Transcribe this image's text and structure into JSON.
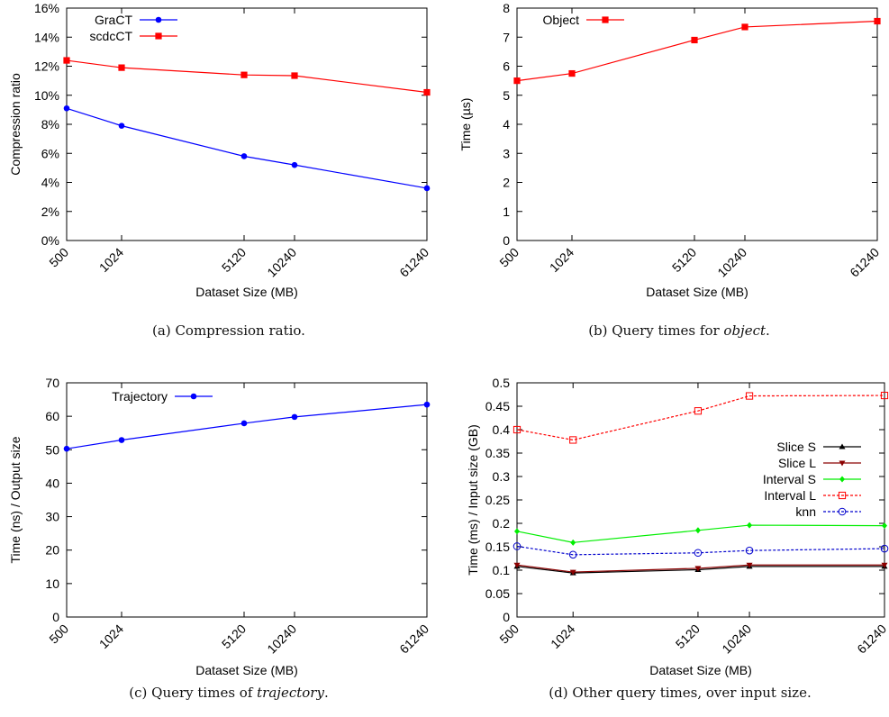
{
  "chart_data": [
    {
      "type": "line",
      "x": [
        "500",
        "1024",
        "5120",
        "10240",
        "61240"
      ],
      "xlabel": "Dataset Size (MB)",
      "ylabel": "Compression ratio",
      "ylim": [
        0,
        16
      ],
      "yticks": [
        "0%",
        "2%",
        "4%",
        "6%",
        "8%",
        "10%",
        "12%",
        "14%",
        "16%"
      ],
      "legend_position": "top-left",
      "caption": "(a) Compression ratio.",
      "series": [
        {
          "name": "GraCT",
          "color": "#0000ff",
          "marker": "circle",
          "dash": "",
          "values": [
            9.1,
            7.9,
            5.8,
            5.2,
            3.6
          ]
        },
        {
          "name": "scdcCT",
          "color": "#ff0000",
          "marker": "square",
          "dash": "",
          "values": [
            12.4,
            11.9,
            11.4,
            11.35,
            10.2
          ]
        }
      ]
    },
    {
      "type": "line",
      "x": [
        "500",
        "1024",
        "5120",
        "10240",
        "61240"
      ],
      "xlabel": "Dataset Size (MB)",
      "ylabel": "Time (µs)",
      "ylim": [
        0,
        8
      ],
      "yticks": [
        "0",
        "1",
        "2",
        "3",
        "4",
        "5",
        "6",
        "7",
        "8"
      ],
      "legend_position": "top-left",
      "caption_prefix": "(b) Query times for ",
      "caption_em": "object",
      "caption_suffix": ".",
      "series": [
        {
          "name": "Object",
          "color": "#ff0000",
          "marker": "square",
          "dash": "",
          "values": [
            5.5,
            5.75,
            6.9,
            7.35,
            7.55
          ]
        }
      ]
    },
    {
      "type": "line",
      "x": [
        "500",
        "1024",
        "5120",
        "10240",
        "61240"
      ],
      "xlabel": "Dataset Size (MB)",
      "ylabel": "Time (ns) / Output size",
      "ylim": [
        0,
        70
      ],
      "yticks": [
        "0",
        "10",
        "20",
        "30",
        "40",
        "50",
        "60",
        "70"
      ],
      "legend_position": "top-left",
      "caption_prefix": "(c) Query times of ",
      "caption_em": "trajectory",
      "caption_suffix": ".",
      "series": [
        {
          "name": "Trajectory",
          "color": "#0000ff",
          "marker": "circle",
          "dash": "",
          "values": [
            50.3,
            52.9,
            57.9,
            59.8,
            63.5
          ]
        }
      ]
    },
    {
      "type": "line",
      "x": [
        "500",
        "1024",
        "5120",
        "10240",
        "61240"
      ],
      "xlabel": "Dataset Size (MB)",
      "ylabel": "Time (ms) / Input size (GB)",
      "ylim": [
        0,
        0.5
      ],
      "yticks": [
        "0",
        "0.05",
        "0.1",
        "0.15",
        "0.2",
        "0.25",
        "0.3",
        "0.35",
        "0.4",
        "0.45",
        "0.5"
      ],
      "legend_position": "right",
      "caption": "(d) Other query times, over input size.",
      "series": [
        {
          "name": "Slice S",
          "color": "#000000",
          "marker": "triangle-up",
          "dash": "",
          "values": [
            0.108,
            0.094,
            0.101,
            0.108,
            0.108
          ]
        },
        {
          "name": "Slice L",
          "color": "#8b0000",
          "marker": "triangle-down",
          "dash": "",
          "values": [
            0.111,
            0.096,
            0.104,
            0.111,
            0.111
          ]
        },
        {
          "name": "Interval S",
          "color": "#00ee00",
          "marker": "diamond",
          "dash": "",
          "values": [
            0.183,
            0.159,
            0.185,
            0.196,
            0.195
          ]
        },
        {
          "name": "Interval L",
          "color": "#ff0000",
          "marker": "open-square",
          "dash": "3,2",
          "values": [
            0.4,
            0.378,
            0.44,
            0.472,
            0.473
          ]
        },
        {
          "name": "knn",
          "color": "#0000cd",
          "marker": "open-circle",
          "dash": "3,2",
          "values": [
            0.151,
            0.133,
            0.137,
            0.142,
            0.146
          ]
        }
      ]
    }
  ]
}
